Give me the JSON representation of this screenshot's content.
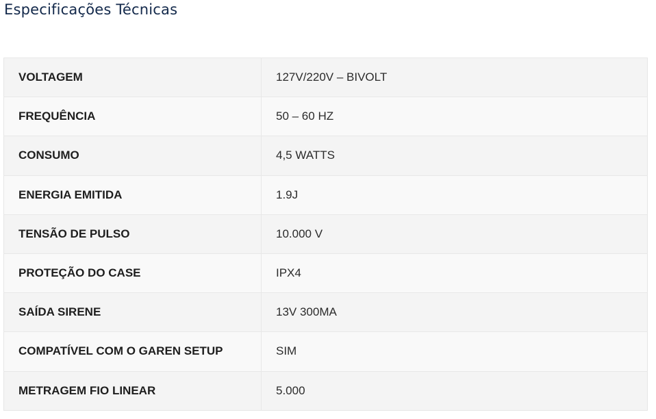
{
  "title": "Especificações Técnicas",
  "specs": [
    {
      "label": "VOLTAGEM",
      "value": "127V/220V – BIVOLT"
    },
    {
      "label": "FREQUÊNCIA",
      "value": "50 – 60 HZ"
    },
    {
      "label": "CONSUMO",
      "value": "4,5 WATTS"
    },
    {
      "label": "ENERGIA EMITIDA",
      "value": "1.9J"
    },
    {
      "label": "TENSÃO DE PULSO",
      "value": "10.000 V"
    },
    {
      "label": "PROTEÇÃO DO CASE",
      "value": "IPX4"
    },
    {
      "label": "SAÍDA SIRENE",
      "value": "13V 300MA"
    },
    {
      "label": "COMPATÍVEL COM O GAREN SETUP",
      "value": "SIM"
    },
    {
      "label": "METRAGEM FIO LINEAR",
      "value": "5.000"
    }
  ],
  "colors": {
    "title": "#13294b",
    "row_odd": "#f4f4f4",
    "row_even": "#f9f9f9"
  }
}
